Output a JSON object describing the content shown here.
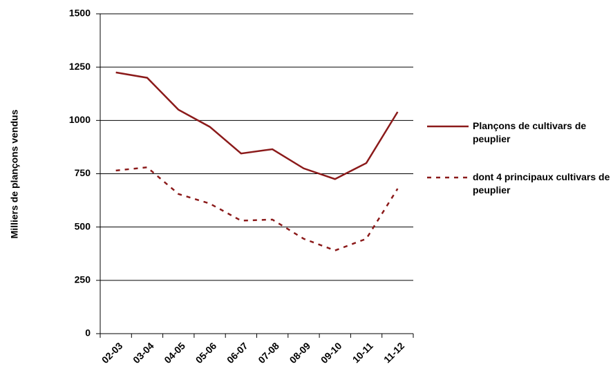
{
  "chart_data": {
    "type": "line",
    "y_label": "Milliers de plançons vendus",
    "categories": [
      "02-03",
      "03-04",
      "04-05",
      "05-06",
      "06-07",
      "07-08",
      "08-09",
      "09-10",
      "10-11",
      "11-12"
    ],
    "series": [
      {
        "name": "Plançons de cultivars de peuplier",
        "color": "#8b1a1a",
        "dash": "solid",
        "values": [
          1225,
          1200,
          1050,
          970,
          845,
          865,
          775,
          725,
          800,
          1040
        ]
      },
      {
        "name": "dont 4 principaux cultivars de peuplier",
        "color": "#8b1a1a",
        "dash": "dashed",
        "values": [
          765,
          780,
          655,
          610,
          530,
          535,
          445,
          390,
          445,
          680
        ]
      }
    ],
    "ylim": [
      0,
      1500
    ],
    "yticks": [
      0,
      250,
      500,
      750,
      1000,
      1250,
      1500
    ],
    "grid": true
  }
}
